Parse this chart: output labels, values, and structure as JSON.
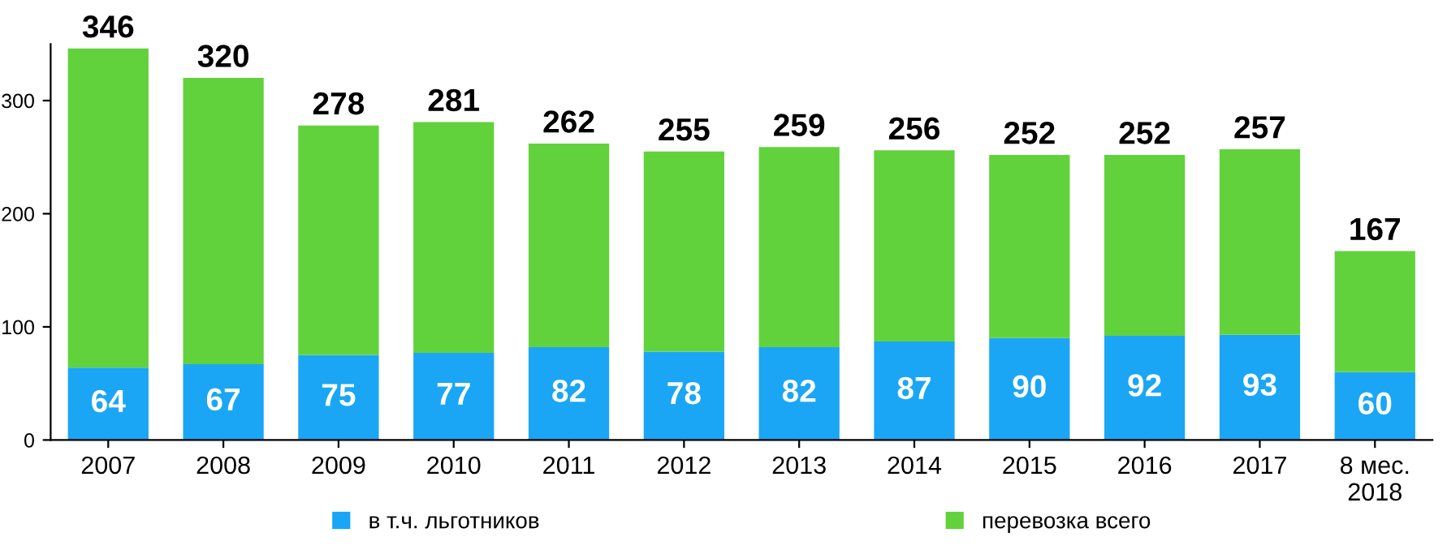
{
  "chart_data": {
    "type": "bar",
    "stacked": true,
    "categories": [
      "2007",
      "2008",
      "2009",
      "2010",
      "2011",
      "2012",
      "2013",
      "2014",
      "2015",
      "2016",
      "2017",
      "8 мес.\n2018"
    ],
    "series": [
      {
        "name": "в т.ч. льготников",
        "color": "#1aa6f5",
        "values": [
          64,
          67,
          75,
          77,
          82,
          78,
          82,
          87,
          90,
          92,
          93,
          60
        ],
        "value_labels": [
          "64",
          "67",
          "75",
          "77",
          "82",
          "78",
          "82",
          "87",
          "90",
          "92",
          "93",
          "60"
        ]
      },
      {
        "name": "перевозка всего",
        "color": "#62d23c",
        "values": [
          282,
          253,
          203,
          204,
          180,
          177,
          177,
          169,
          162,
          160,
          164,
          107
        ]
      }
    ],
    "totals": [
      "346",
      "320",
      "278",
      "281",
      "262",
      "255",
      "259",
      "256",
      "252",
      "252",
      "257",
      "167"
    ],
    "ylim": [
      0,
      350
    ],
    "yticks": [
      0,
      100,
      200,
      300
    ],
    "grid": false,
    "legend": "bottom"
  }
}
